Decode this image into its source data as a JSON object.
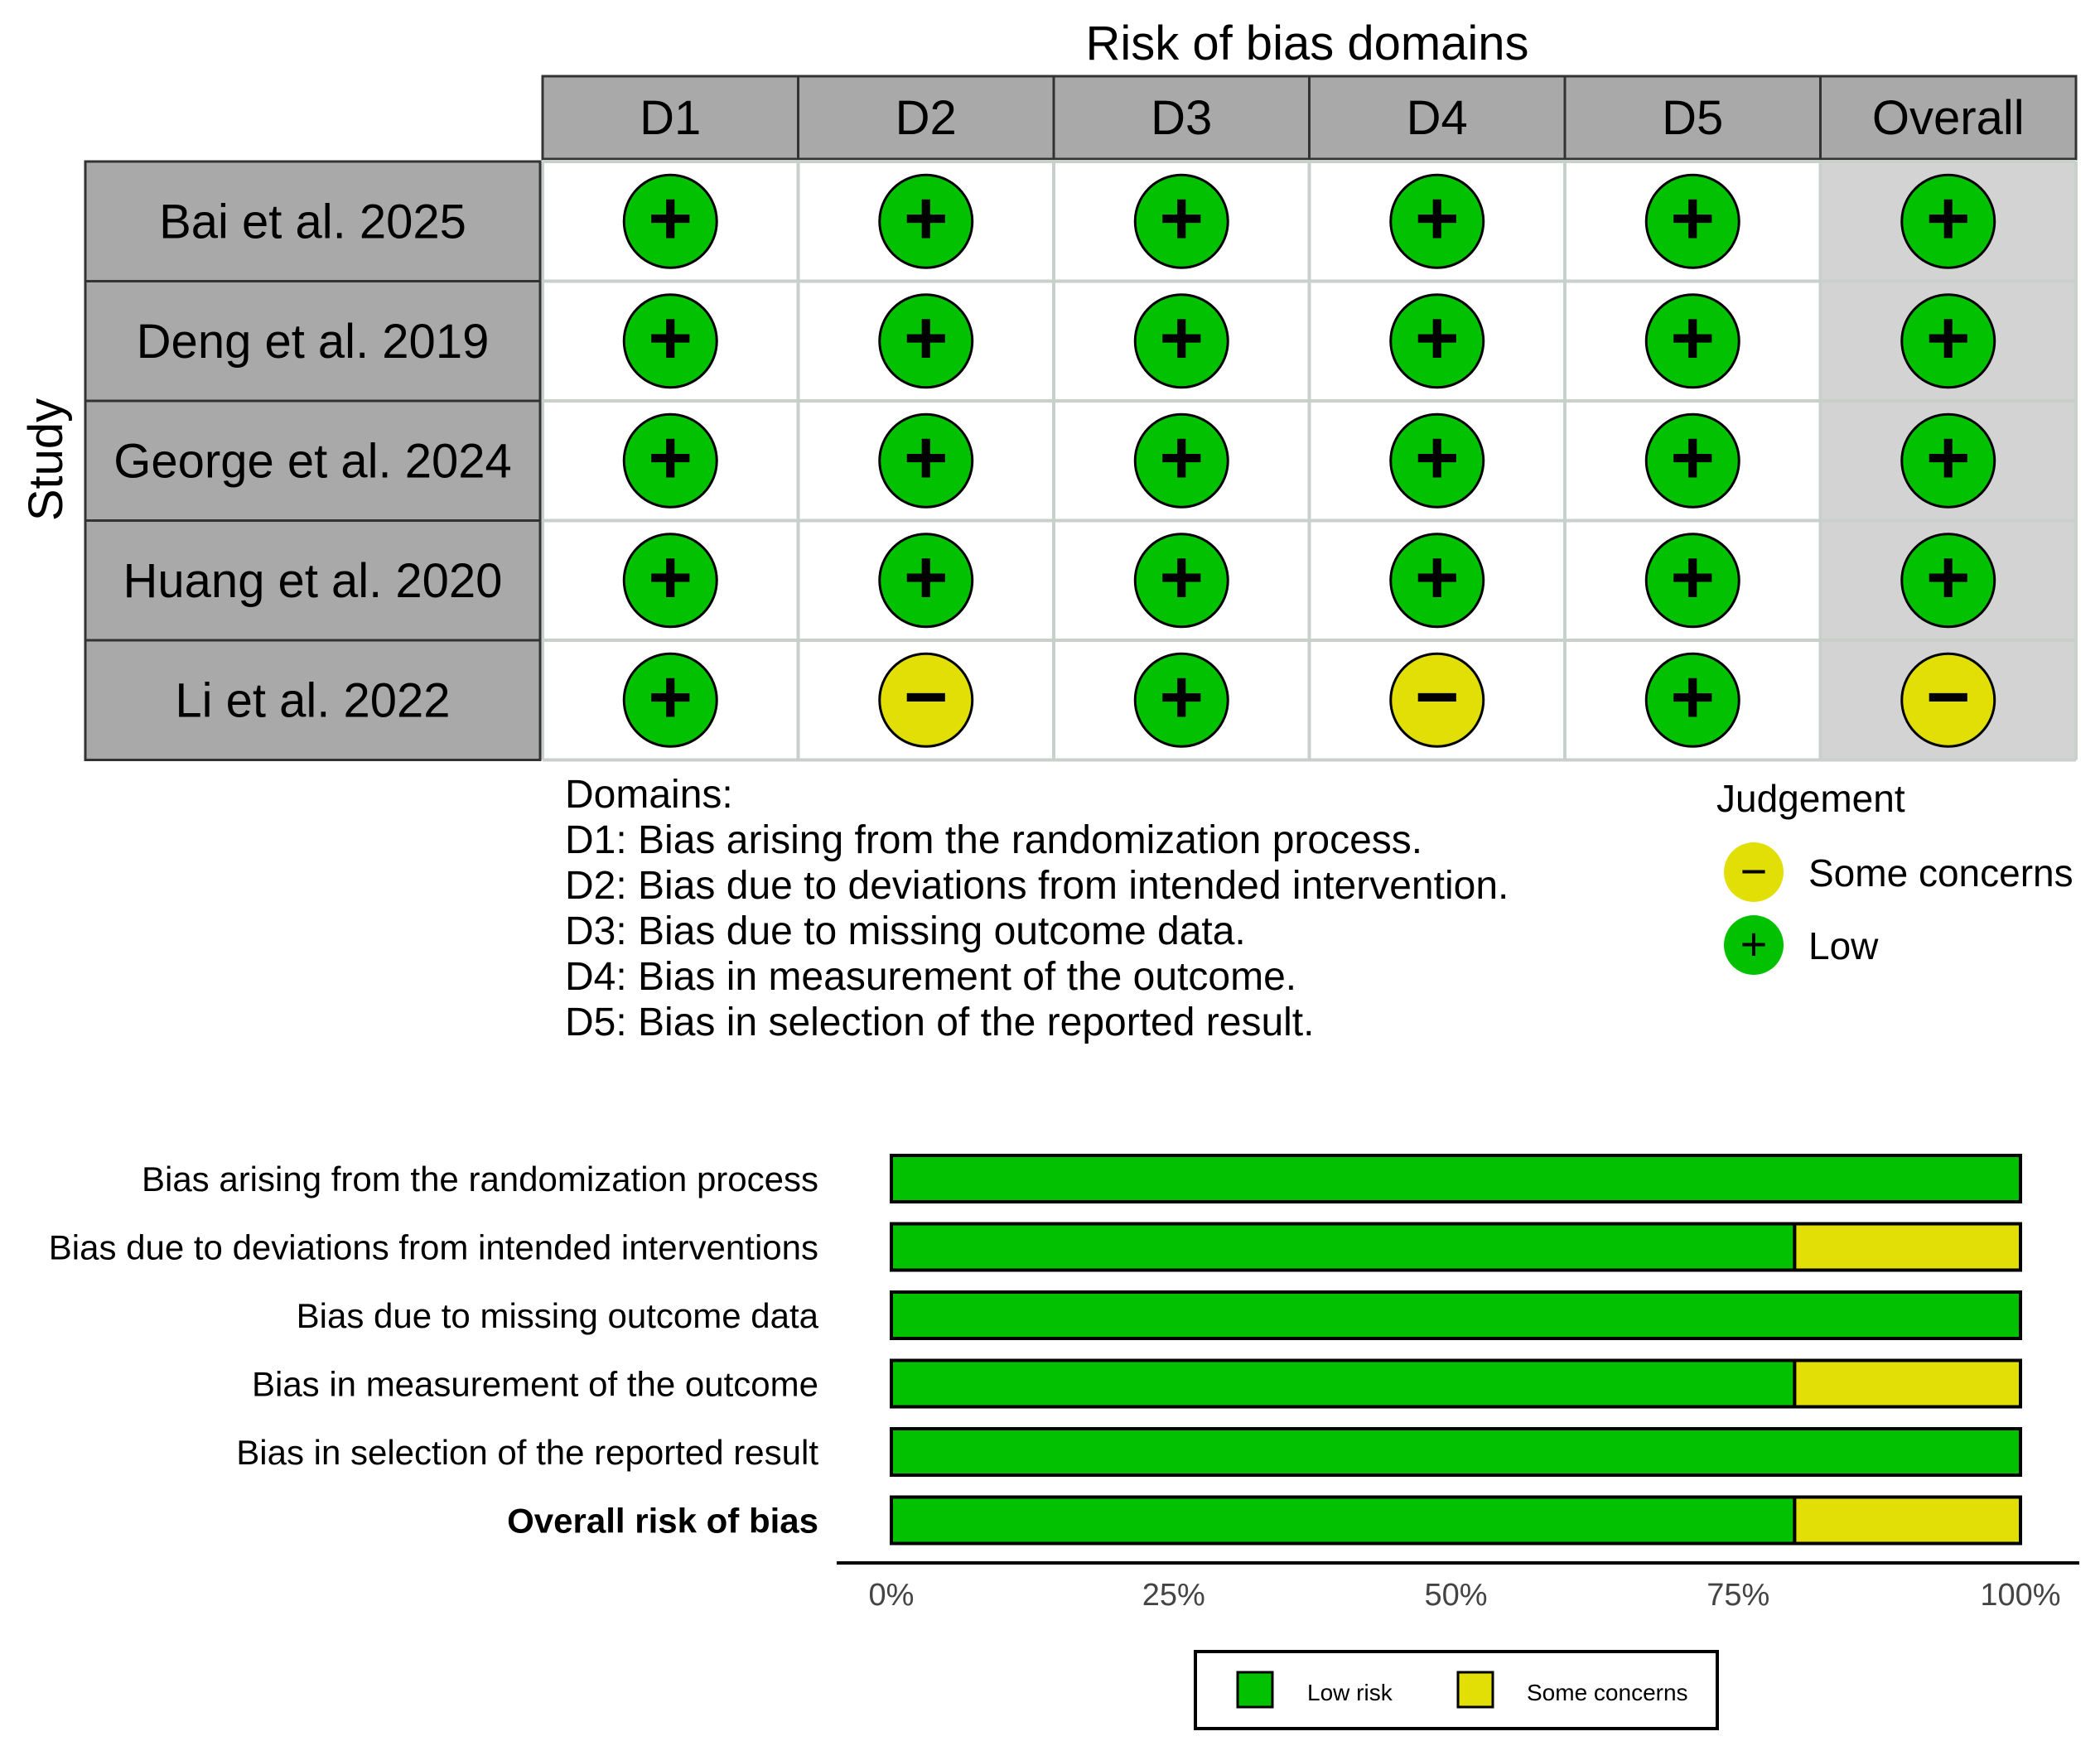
{
  "top": {
    "title": "Risk of bias domains",
    "study_label": "Study",
    "columns": [
      "D1",
      "D2",
      "D3",
      "D4",
      "D5",
      "Overall"
    ],
    "studies": [
      {
        "name": "Bai et al. 2025",
        "judgements": [
          "Low",
          "Low",
          "Low",
          "Low",
          "Low",
          "Low"
        ]
      },
      {
        "name": "Deng et al. 2019",
        "judgements": [
          "Low",
          "Low",
          "Low",
          "Low",
          "Low",
          "Low"
        ]
      },
      {
        "name": "George et al. 2024",
        "judgements": [
          "Low",
          "Low",
          "Low",
          "Low",
          "Low",
          "Low"
        ]
      },
      {
        "name": "Huang et al. 2020",
        "judgements": [
          "Low",
          "Low",
          "Low",
          "Low",
          "Low",
          "Low"
        ]
      },
      {
        "name": "Li et al. 2022",
        "judgements": [
          "Low",
          "Some concerns",
          "Low",
          "Some concerns",
          "Low",
          "Some concerns"
        ]
      }
    ],
    "symbols": {
      "Low": "+",
      "Some concerns": "−"
    },
    "domains_heading": "Domains:",
    "domain_definitions": [
      "D1: Bias arising from the randomization process.",
      "D2: Bias due to deviations from intended intervention.",
      "D3: Bias due to missing outcome data.",
      "D4: Bias in measurement of the outcome.",
      "D5: Bias in selection of the reported result."
    ],
    "judgement_legend": {
      "title": "Judgement",
      "items": [
        {
          "label": "Some concerns",
          "symbol": "−"
        },
        {
          "label": "Low",
          "symbol": "+"
        }
      ]
    }
  },
  "chart_data": {
    "type": "bar",
    "orientation": "horizontal-stacked",
    "categories": [
      "Bias arising from the randomization process",
      "Bias due to deviations from intended interventions",
      "Bias due to missing outcome data",
      "Bias in measurement of the outcome",
      "Bias in selection of the reported result",
      "Overall risk of bias"
    ],
    "series": [
      {
        "name": "Low risk",
        "values": [
          100,
          80,
          100,
          80,
          100,
          80
        ]
      },
      {
        "name": "Some concerns",
        "values": [
          0,
          20,
          0,
          20,
          0,
          20
        ]
      }
    ],
    "xlim": [
      0,
      100
    ],
    "xticks": [
      "0%",
      "25%",
      "50%",
      "75%",
      "100%"
    ],
    "xlabel": "",
    "ylabel": "",
    "legend": "bottom"
  },
  "colors": {
    "low": "#02c100",
    "some_concerns": "#e2df07",
    "header_bg": "#a9a9a9",
    "overall_col_bg": "#d3d3d3",
    "grid_line": "#c8d0cc"
  }
}
